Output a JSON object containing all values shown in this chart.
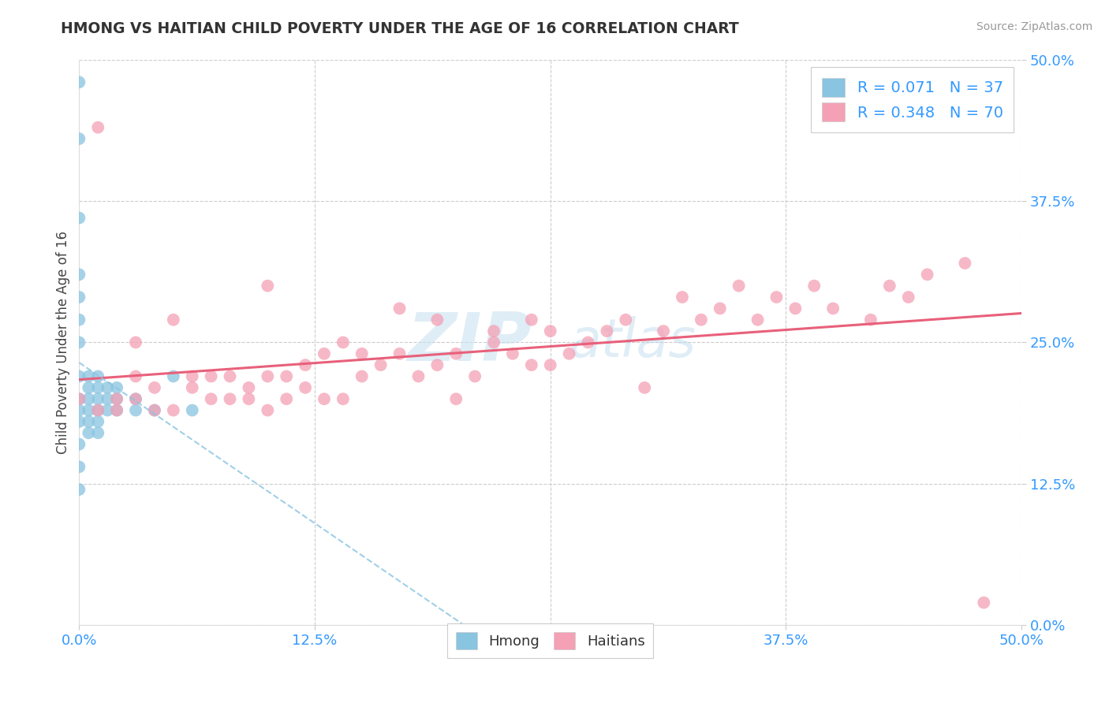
{
  "title": "HMONG VS HAITIAN CHILD POVERTY UNDER THE AGE OF 16 CORRELATION CHART",
  "source": "Source: ZipAtlas.com",
  "ylabel": "Child Poverty Under the Age of 16",
  "xlim": [
    0,
    0.5
  ],
  "ylim": [
    0,
    0.5
  ],
  "hmong_color": "#89c4e1",
  "haitian_color": "#f4a0b5",
  "hmong_line_color": "#89c4e1",
  "haitian_line_color": "#e8607a",
  "hmong_R": 0.071,
  "hmong_N": 37,
  "haitian_R": 0.348,
  "haitian_N": 70,
  "background_color": "#ffffff",
  "grid_color": "#cccccc",
  "tick_color": "#3399ff",
  "title_color": "#333333",
  "source_color": "#999999",
  "watermark_color": "#d0e8f5",
  "hmong_x": [
    0.0,
    0.0,
    0.0,
    0.0,
    0.0,
    0.0,
    0.0,
    0.0,
    0.0,
    0.0,
    0.0,
    0.0,
    0.0,
    0.0,
    0.005,
    0.005,
    0.005,
    0.005,
    0.005,
    0.005,
    0.01,
    0.01,
    0.01,
    0.01,
    0.01,
    0.01,
    0.015,
    0.015,
    0.015,
    0.02,
    0.02,
    0.02,
    0.03,
    0.03,
    0.04,
    0.05,
    0.06
  ],
  "hmong_y": [
    0.48,
    0.43,
    0.36,
    0.31,
    0.29,
    0.27,
    0.25,
    0.22,
    0.2,
    0.19,
    0.18,
    0.16,
    0.14,
    0.12,
    0.22,
    0.21,
    0.2,
    0.19,
    0.18,
    0.17,
    0.22,
    0.21,
    0.2,
    0.19,
    0.18,
    0.17,
    0.21,
    0.2,
    0.19,
    0.21,
    0.2,
    0.19,
    0.2,
    0.19,
    0.19,
    0.22,
    0.19
  ],
  "haitian_x": [
    0.0,
    0.01,
    0.01,
    0.02,
    0.02,
    0.03,
    0.03,
    0.03,
    0.04,
    0.04,
    0.05,
    0.05,
    0.06,
    0.06,
    0.07,
    0.07,
    0.08,
    0.08,
    0.09,
    0.09,
    0.1,
    0.1,
    0.1,
    0.11,
    0.11,
    0.12,
    0.12,
    0.13,
    0.13,
    0.14,
    0.14,
    0.15,
    0.15,
    0.16,
    0.17,
    0.17,
    0.18,
    0.19,
    0.19,
    0.2,
    0.2,
    0.21,
    0.22,
    0.22,
    0.23,
    0.24,
    0.24,
    0.25,
    0.25,
    0.26,
    0.27,
    0.28,
    0.29,
    0.3,
    0.31,
    0.32,
    0.33,
    0.34,
    0.35,
    0.36,
    0.37,
    0.38,
    0.39,
    0.4,
    0.42,
    0.43,
    0.44,
    0.45,
    0.47,
    0.48
  ],
  "haitian_y": [
    0.2,
    0.19,
    0.44,
    0.2,
    0.19,
    0.2,
    0.22,
    0.25,
    0.19,
    0.21,
    0.19,
    0.27,
    0.21,
    0.22,
    0.2,
    0.22,
    0.2,
    0.22,
    0.2,
    0.21,
    0.19,
    0.22,
    0.3,
    0.2,
    0.22,
    0.21,
    0.23,
    0.2,
    0.24,
    0.2,
    0.25,
    0.22,
    0.24,
    0.23,
    0.28,
    0.24,
    0.22,
    0.23,
    0.27,
    0.2,
    0.24,
    0.22,
    0.25,
    0.26,
    0.24,
    0.23,
    0.27,
    0.23,
    0.26,
    0.24,
    0.25,
    0.26,
    0.27,
    0.21,
    0.26,
    0.29,
    0.27,
    0.28,
    0.3,
    0.27,
    0.29,
    0.28,
    0.3,
    0.28,
    0.27,
    0.3,
    0.29,
    0.31,
    0.32,
    0.02
  ]
}
